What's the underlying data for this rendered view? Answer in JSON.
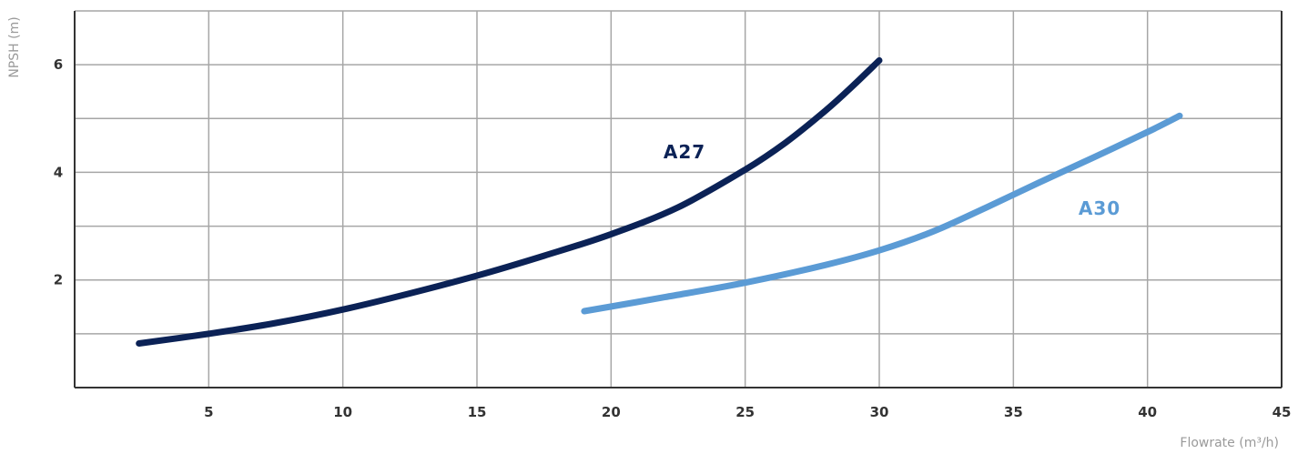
{
  "chart_data": {
    "type": "line",
    "xlabel": "Flowrate (m³/h)",
    "ylabel": "NPSH (m)",
    "xlim": [
      0,
      45
    ],
    "ylim": [
      0,
      7
    ],
    "x_ticks": [
      5,
      10,
      15,
      20,
      25,
      30,
      35,
      40,
      45
    ],
    "y_ticks": [
      2,
      4,
      6
    ],
    "grid": true,
    "series": [
      {
        "name": "A27",
        "color": "#0b2256",
        "x": [
          2.4,
          5,
          7.5,
          10,
          12.5,
          15,
          17.5,
          20,
          22.5,
          25,
          26.5,
          28,
          29,
          30
        ],
        "y": [
          0.82,
          1.0,
          1.2,
          1.45,
          1.75,
          2.08,
          2.45,
          2.85,
          3.35,
          4.05,
          4.55,
          5.15,
          5.6,
          6.08
        ]
      },
      {
        "name": "A30",
        "color": "#5b9bd5",
        "x": [
          19,
          22,
          25,
          28,
          30,
          32,
          34,
          36,
          38,
          40,
          41.2
        ],
        "y": [
          1.42,
          1.68,
          1.95,
          2.28,
          2.55,
          2.9,
          3.35,
          3.82,
          4.28,
          4.75,
          5.05
        ]
      }
    ]
  }
}
